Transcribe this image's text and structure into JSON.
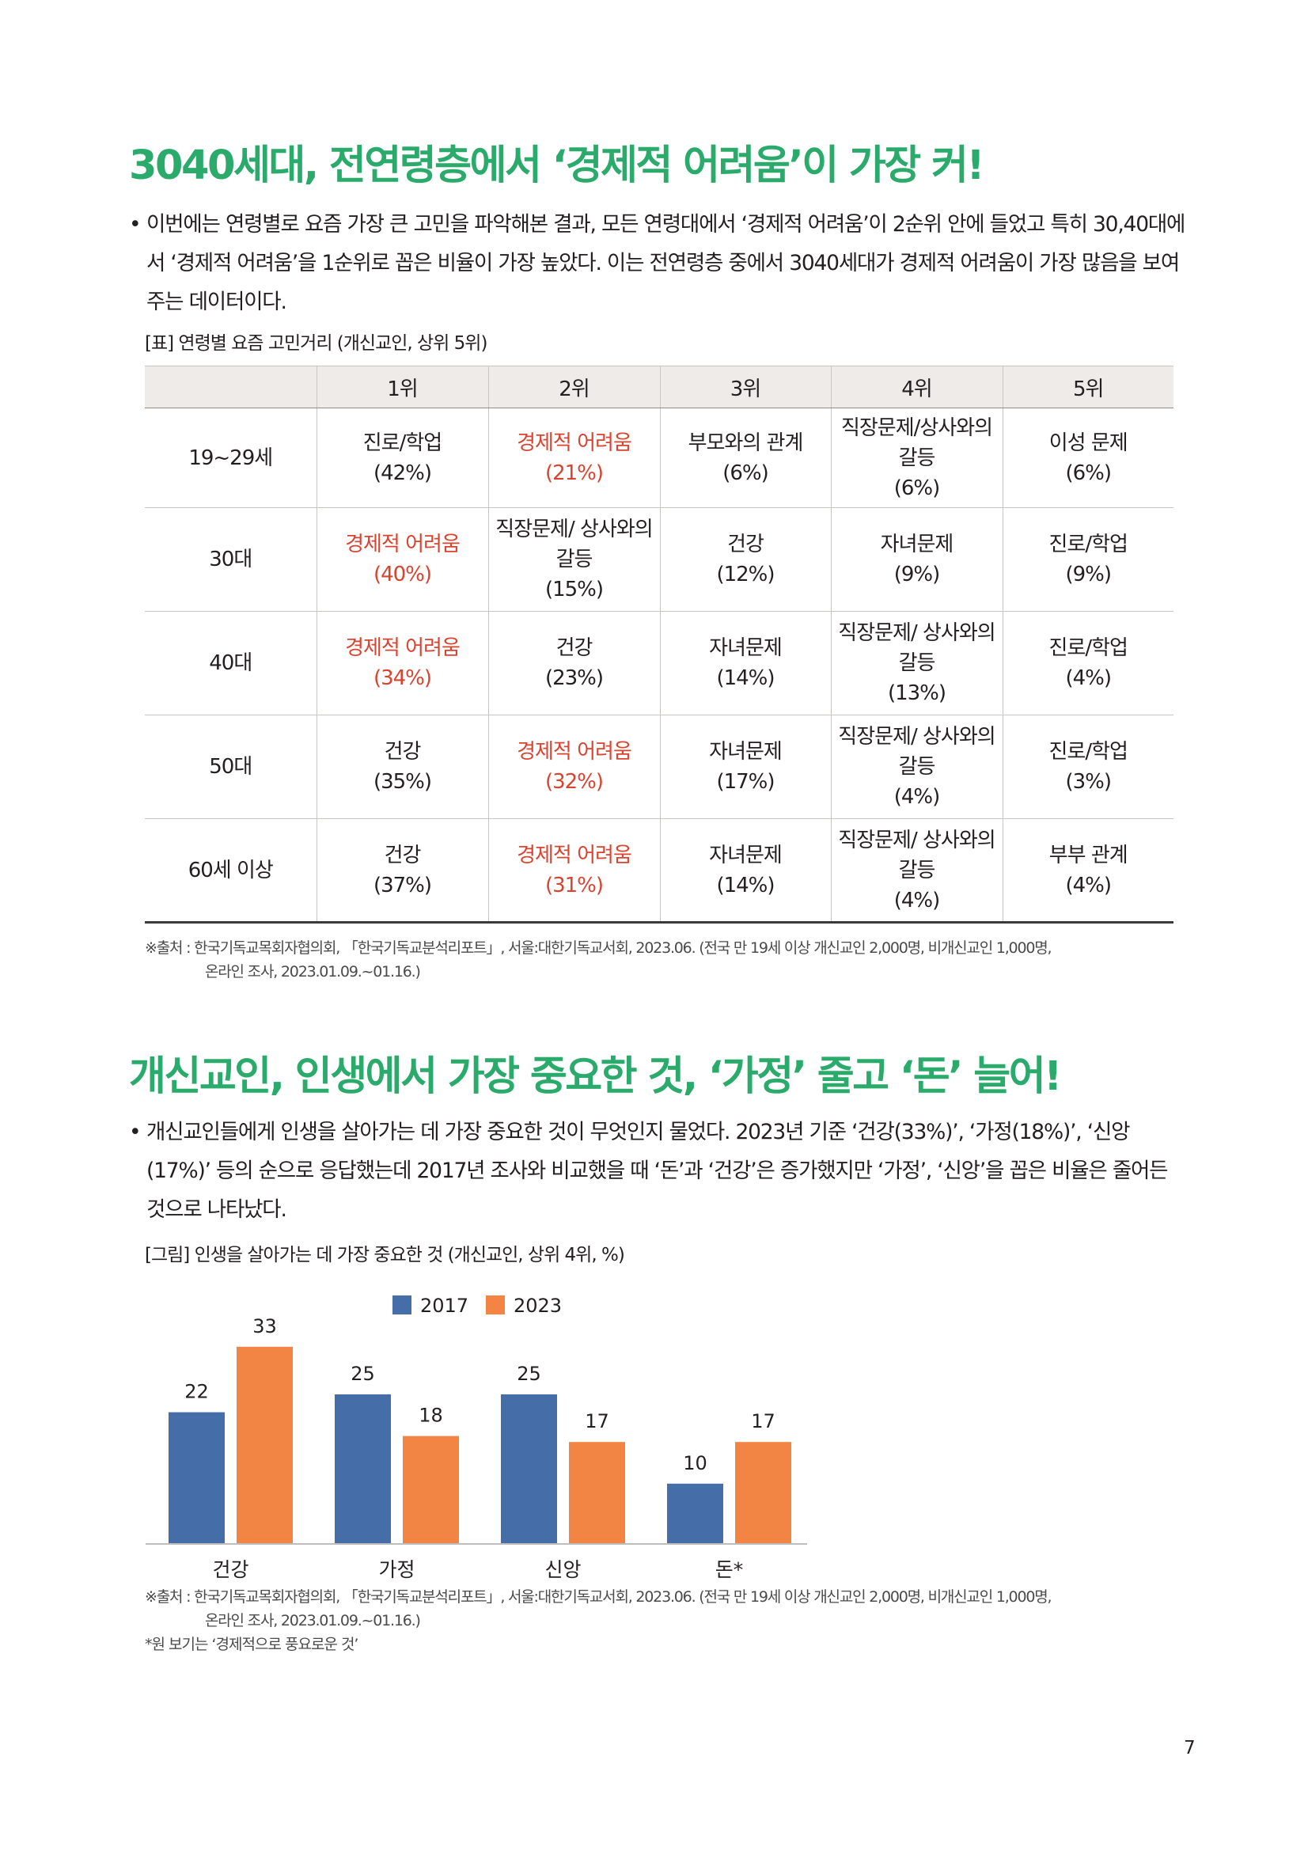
{
  "section1": {
    "title": "3040세대, 전연령층에서 ‘경제적 어려움’이 가장 커!",
    "bullet": "•",
    "paragraph": "이번에는 연령별로 요즘 가장 큰 고민을 파악해본 결과, 모든 연령대에서 ‘경제적 어려움’이 2순위 안에 들었고 특히 30,40대에서 ‘경제적 어려움’을 1순위로 꼽은 비율이 가장 높았다. 이는 전연령층 중에서 3040세대가 경제적 어려움이 가장 많음을 보여주는 데이터이다."
  },
  "table": {
    "caption": "[표] 연령별 요즘 고민거리 (개신교인, 상위 5위)",
    "headers": [
      "",
      "1위",
      "2위",
      "3위",
      "4위",
      "5위"
    ],
    "rows": [
      {
        "age": "19~29세",
        "cells": [
          {
            "label": "진로/학업",
            "pct": "(42%)",
            "highlight": false
          },
          {
            "label": "경제적 어려움",
            "pct": "(21%)",
            "highlight": true
          },
          {
            "label": "부모와의 관계",
            "pct": "(6%)",
            "highlight": false
          },
          {
            "label": "직장문제/상사와의 갈등",
            "pct": "(6%)",
            "highlight": false
          },
          {
            "label": "이성 문제",
            "pct": "(6%)",
            "highlight": false
          }
        ]
      },
      {
        "age": "30대",
        "cells": [
          {
            "label": "경제적 어려움",
            "pct": "(40%)",
            "highlight": true
          },
          {
            "label": "직장문제/ 상사와의 갈등",
            "pct": "(15%)",
            "highlight": false
          },
          {
            "label": "건강",
            "pct": "(12%)",
            "highlight": false
          },
          {
            "label": "자녀문제",
            "pct": "(9%)",
            "highlight": false
          },
          {
            "label": "진로/학업",
            "pct": "(9%)",
            "highlight": false
          }
        ]
      },
      {
        "age": "40대",
        "cells": [
          {
            "label": "경제적 어려움",
            "pct": "(34%)",
            "highlight": true
          },
          {
            "label": "건강",
            "pct": "(23%)",
            "highlight": false
          },
          {
            "label": "자녀문제",
            "pct": "(14%)",
            "highlight": false
          },
          {
            "label": "직장문제/ 상사와의 갈등",
            "pct": "(13%)",
            "highlight": false
          },
          {
            "label": "진로/학업",
            "pct": "(4%)",
            "highlight": false
          }
        ]
      },
      {
        "age": "50대",
        "cells": [
          {
            "label": "건강",
            "pct": "(35%)",
            "highlight": false
          },
          {
            "label": "경제적 어려움",
            "pct": "(32%)",
            "highlight": true
          },
          {
            "label": "자녀문제",
            "pct": "(17%)",
            "highlight": false
          },
          {
            "label": "직장문제/ 상사와의 갈등",
            "pct": "(4%)",
            "highlight": false
          },
          {
            "label": "진로/학업",
            "pct": "(3%)",
            "highlight": false
          }
        ]
      },
      {
        "age": "60세 이상",
        "cells": [
          {
            "label": "건강",
            "pct": "(37%)",
            "highlight": false
          },
          {
            "label": "경제적 어려움",
            "pct": "(31%)",
            "highlight": true
          },
          {
            "label": "자녀문제",
            "pct": "(14%)",
            "highlight": false
          },
          {
            "label": "직장문제/ 상사와의 갈등",
            "pct": "(4%)",
            "highlight": false
          },
          {
            "label": "부부 관계",
            "pct": "(4%)",
            "highlight": false
          }
        ]
      }
    ],
    "source_line1": "※출처 : 한국기독교목회자협의회, 「한국기독교분석리포트」, 서울:대한기독교서회, 2023.06. (전국 만 19세 이상 개신교인 2,000명, 비개신교인 1,000명,",
    "source_line2": "온라인 조사, 2023.01.09.~01.16.)"
  },
  "section2": {
    "title": "개신교인, 인생에서 가장 중요한 것, ‘가정’ 줄고 ‘돈’ 늘어!",
    "bullet": "•",
    "paragraph": "개신교인들에게 인생을 살아가는 데 가장 중요한 것이 무엇인지 물었다. 2023년 기준 ‘건강(33%)’, ‘가정(18%)’, ‘신앙(17%)’ 등의 순으로 응답했는데 2017년 조사와 비교했을 때 ‘돈’과 ‘건강’은 증가했지만 ‘가정’, ‘신앙’을 꼽은 비율은 줄어든 것으로 나타났다."
  },
  "figure": {
    "caption": "[그림] 인생을 살아가는 데 가장 중요한 것 (개신교인, 상위 4위, %)",
    "source_line1": "※출처 : 한국기독교목회자협의회, 「한국기독교분석리포트」, 서울:대한기독교서회, 2023.06. (전국 만 19세 이상 개신교인 2,000명, 비개신교인 1,000명,",
    "source_line2": "온라인 조사, 2023.01.09.~01.16.)",
    "footnote": "*원 보기는 ‘경제적으로 풍요로운 것’"
  },
  "chart_data": {
    "type": "bar",
    "categories": [
      "건강",
      "가정",
      "신앙",
      "돈*"
    ],
    "series": [
      {
        "name": "2017",
        "values": [
          22,
          25,
          25,
          10
        ],
        "color": "#456da8"
      },
      {
        "name": "2023",
        "values": [
          33,
          18,
          17,
          17
        ],
        "color": "#f28444"
      }
    ],
    "title": "",
    "xlabel": "",
    "ylabel": "",
    "ylim": [
      0,
      33
    ],
    "legend": "top-center",
    "grid": false,
    "data_labels": true
  },
  "page_number": "7"
}
